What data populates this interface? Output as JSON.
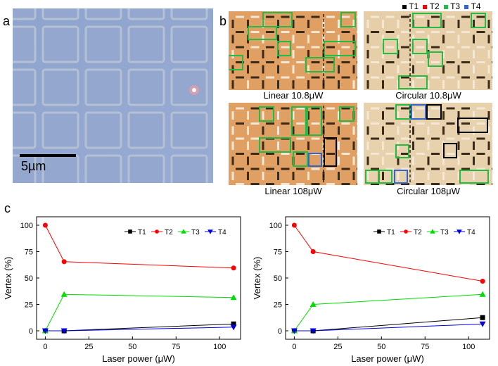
{
  "panels": {
    "a": "a",
    "b": "b",
    "c": "c"
  },
  "panel_a": {
    "scale_label": "5µm"
  },
  "panel_b": {
    "legend": [
      {
        "name": "T1",
        "color": "#000000"
      },
      {
        "name": "T2",
        "color": "#ff0000"
      },
      {
        "name": "T3",
        "color": "#22bb44"
      },
      {
        "name": "T4",
        "color": "#3366cc"
      }
    ],
    "captions": [
      "Linear 10.8μW",
      "Circular 10.8μW",
      "Linear 108μW",
      "Circular 108μW"
    ]
  },
  "chart_data": [
    {
      "type": "line",
      "title": "",
      "xlabel": "Laser power (μW)",
      "ylabel": "Vertex (%)",
      "xlim": [
        -5,
        112
      ],
      "ylim": [
        -8,
        108
      ],
      "xticks": [
        0,
        25,
        50,
        75,
        100
      ],
      "yticks": [
        0,
        25,
        50,
        75,
        100
      ],
      "x": [
        0,
        10.8,
        108
      ],
      "legend_position": "top-right",
      "series": [
        {
          "name": "T1",
          "color": "#000000",
          "marker": "square",
          "values": [
            0,
            0,
            6.5
          ]
        },
        {
          "name": "T2",
          "color": "#ff0000",
          "marker": "circle",
          "values": [
            100,
            65.5,
            59.5
          ]
        },
        {
          "name": "T3",
          "color": "#00dd00",
          "marker": "triangle-up",
          "values": [
            0,
            34.5,
            31.5
          ]
        },
        {
          "name": "T4",
          "color": "#0000dd",
          "marker": "triangle-down",
          "values": [
            0,
            0,
            3.5
          ]
        }
      ]
    },
    {
      "type": "line",
      "title": "",
      "xlabel": "Laser power (μW)",
      "ylabel": "Vertex (%)",
      "xlim": [
        -5,
        112
      ],
      "ylim": [
        -8,
        108
      ],
      "xticks": [
        0,
        25,
        50,
        75,
        100
      ],
      "yticks": [
        0,
        25,
        50,
        75,
        100
      ],
      "x": [
        0,
        10.8,
        108
      ],
      "legend_position": "top-right",
      "series": [
        {
          "name": "T1",
          "color": "#000000",
          "marker": "square",
          "values": [
            0,
            0,
            12.5
          ]
        },
        {
          "name": "T2",
          "color": "#ff0000",
          "marker": "circle",
          "values": [
            100,
            75,
            47
          ]
        },
        {
          "name": "T3",
          "color": "#00dd00",
          "marker": "triangle-up",
          "values": [
            0,
            25,
            34.5
          ]
        },
        {
          "name": "T4",
          "color": "#0000dd",
          "marker": "triangle-down",
          "values": [
            0,
            0,
            6.5
          ]
        }
      ]
    }
  ]
}
